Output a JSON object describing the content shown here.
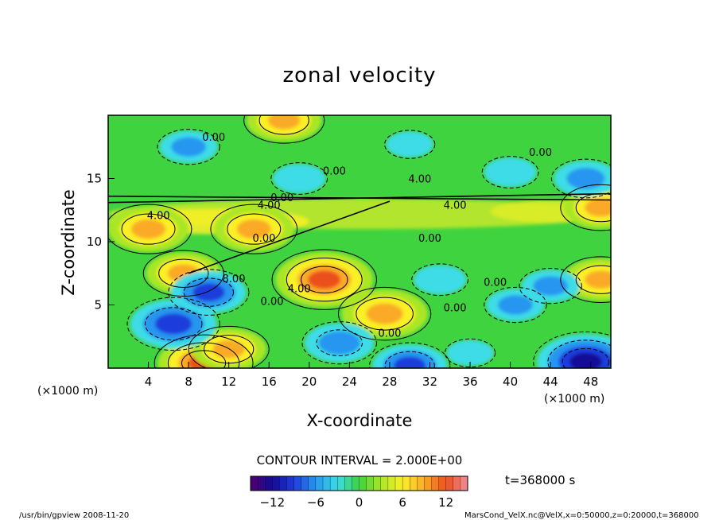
{
  "chart_data": {
    "type": "heatmap",
    "title": "zonal velocity",
    "xlabel": "X-coordinate",
    "ylabel": "Z-coordinate",
    "x_unit": "(×1000 m)",
    "y_unit": "(×1000 m)",
    "xlim": [
      0,
      50
    ],
    "ylim": [
      0,
      20
    ],
    "x_ticks": [
      4,
      8,
      12,
      16,
      20,
      24,
      28,
      32,
      36,
      40,
      44,
      48
    ],
    "y_ticks": [
      5,
      10,
      15
    ],
    "contour_interval_text": "CONTOUR INTERVAL = 2.000E+00",
    "time_text": "t=368000 s",
    "contour_labels": [
      {
        "text": "0.00",
        "x": 10.5,
        "z": 18.0
      },
      {
        "text": "0.00",
        "x": 22.5,
        "z": 15.3
      },
      {
        "text": "4.00",
        "x": 31.0,
        "z": 14.7
      },
      {
        "text": "0.00",
        "x": 43.0,
        "z": 16.8
      },
      {
        "text": "0.00",
        "x": 17.3,
        "z": 13.2
      },
      {
        "text": "4.00",
        "x": 16.0,
        "z": 12.6
      },
      {
        "text": "4.00",
        "x": 34.5,
        "z": 12.6
      },
      {
        "text": "4.00",
        "x": 5.0,
        "z": 11.8
      },
      {
        "text": "0.00",
        "x": 15.5,
        "z": 10.0
      },
      {
        "text": "0.00",
        "x": 32.0,
        "z": 10.0
      },
      {
        "text": "8.00",
        "x": 12.5,
        "z": 6.8
      },
      {
        "text": "4.00",
        "x": 19.0,
        "z": 6.0
      },
      {
        "text": "0.00",
        "x": 16.3,
        "z": 5.0
      },
      {
        "text": "0.00",
        "x": 34.5,
        "z": 4.5
      },
      {
        "text": "0.00",
        "x": 38.5,
        "z": 6.5
      },
      {
        "text": "0.00",
        "x": 28.0,
        "z": 2.5
      }
    ],
    "colorbar": {
      "vmin": -15,
      "vmax": 15,
      "tick_values": [
        -12,
        -6,
        0,
        6,
        12
      ],
      "tick_labels": [
        "−12",
        "−6",
        "0",
        "6",
        "12"
      ]
    },
    "features": [
      {
        "x": 21.5,
        "z": 7.0,
        "value": 13
      },
      {
        "x": 27.5,
        "z": 4.3,
        "value": 11
      },
      {
        "x": 49.0,
        "z": 7.0,
        "value": 9
      },
      {
        "x": 7.5,
        "z": 7.5,
        "value": 9
      },
      {
        "x": 9.5,
        "z": 0.4,
        "value": 12
      },
      {
        "x": 17.5,
        "z": 19.6,
        "value": 9
      },
      {
        "x": 4.0,
        "z": 11.0,
        "value": 10
      },
      {
        "x": 14.5,
        "z": 11.0,
        "value": 10
      },
      {
        "x": 49.0,
        "z": 12.7,
        "value": 9
      },
      {
        "x": 12.0,
        "z": 1.5,
        "value": 9
      },
      {
        "x": 6.5,
        "z": 3.5,
        "value": -11
      },
      {
        "x": 10.0,
        "z": 6.0,
        "value": -9
      },
      {
        "x": 23.0,
        "z": 2.0,
        "value": -8
      },
      {
        "x": 30.0,
        "z": 0.2,
        "value": -9
      },
      {
        "x": 47.5,
        "z": 0.5,
        "value": -13
      },
      {
        "x": 40.5,
        "z": 5.0,
        "value": -6
      },
      {
        "x": 33.0,
        "z": 7.0,
        "value": -5
      },
      {
        "x": 44.0,
        "z": 6.5,
        "value": -6
      },
      {
        "x": 47.5,
        "z": 15.0,
        "value": -7
      },
      {
        "x": 40.0,
        "z": 15.5,
        "value": -5
      },
      {
        "x": 8.0,
        "z": 17.5,
        "value": -6
      },
      {
        "x": 30.0,
        "z": 17.7,
        "value": -4
      },
      {
        "x": 19.0,
        "z": 15.0,
        "value": -5
      },
      {
        "x": 36.0,
        "z": 1.2,
        "value": -4
      }
    ]
  },
  "footer": {
    "program": "/usr/bin/gpview  2008-11-20",
    "source": "MarsCond_VelX.nc@VelX,x=0:50000,z=0:20000,t=368000"
  },
  "colors": {
    "background": "#ffffff",
    "base_field": "#3fd33f",
    "frame": "#000000"
  }
}
